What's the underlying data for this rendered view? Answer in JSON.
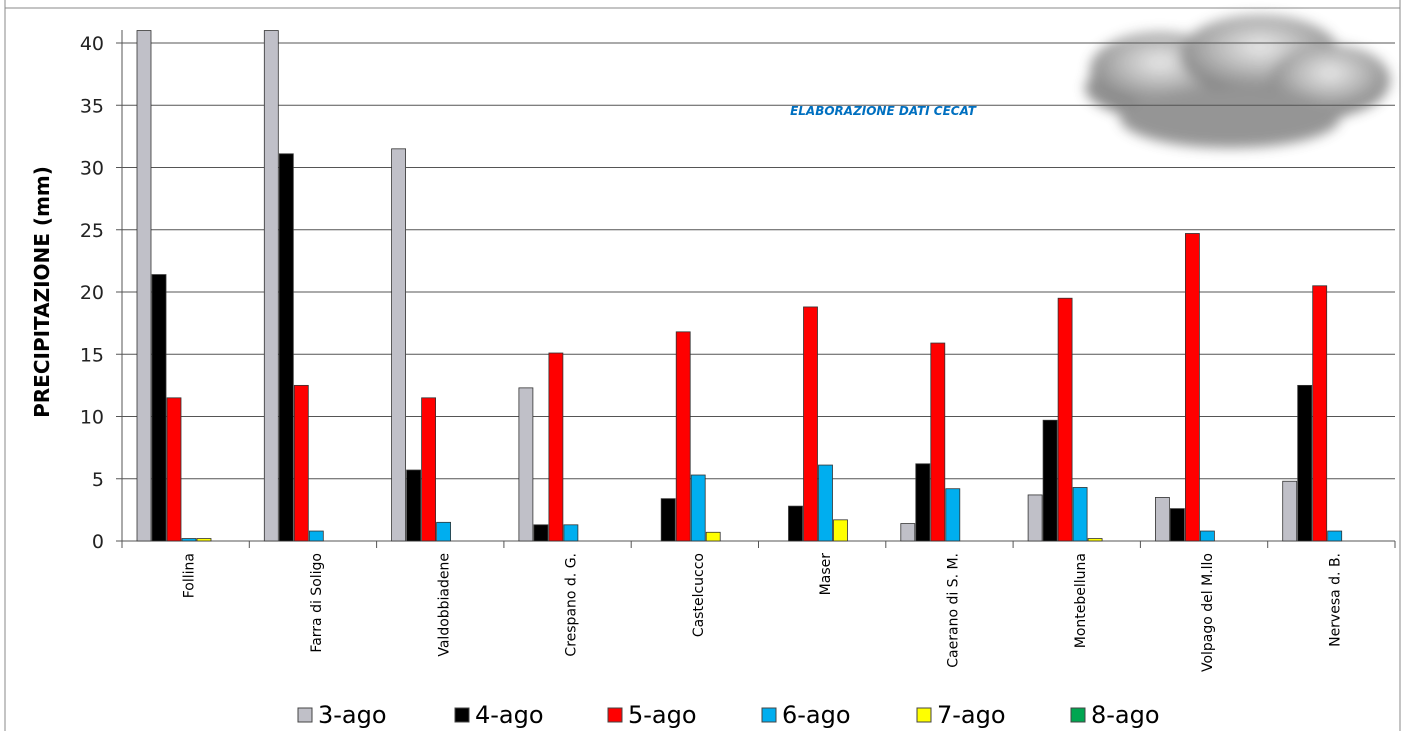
{
  "chart_data": {
    "type": "bar",
    "ylabel": "PRECIPITAZIONE (mm)",
    "xlabel": "",
    "ylim": [
      0,
      40
    ],
    "yticks": [
      0,
      5,
      10,
      15,
      20,
      25,
      30,
      35,
      40
    ],
    "grid": true,
    "legend_position": "bottom",
    "annotation": "ELABORAZIONE DATI CECAT",
    "categories": [
      "Follina",
      "Farra di Soligo",
      "Valdobbiadene",
      "Crespano d. G.",
      "Castelcucco",
      "Maser",
      "Caerano di S. M.",
      "Montebelluna",
      "Volpago del M.llo",
      "Nervesa d. B."
    ],
    "series": [
      {
        "name": "3-ago",
        "color": "#c0c0c8",
        "values": [
          41,
          41,
          31.5,
          12.3,
          0,
          0,
          1.4,
          3.7,
          3.5,
          4.8
        ]
      },
      {
        "name": "4-ago",
        "color": "#000000",
        "values": [
          21.4,
          31.1,
          5.7,
          1.3,
          3.4,
          2.8,
          6.2,
          9.7,
          2.6,
          12.5
        ]
      },
      {
        "name": "5-ago",
        "color": "#ff0000",
        "values": [
          11.5,
          12.5,
          11.5,
          15.1,
          16.8,
          18.8,
          15.9,
          19.5,
          24.7,
          20.5
        ]
      },
      {
        "name": "6-ago",
        "color": "#00aeef",
        "values": [
          0.2,
          0.8,
          1.5,
          1.3,
          5.3,
          6.1,
          4.2,
          4.3,
          0.8,
          0.8
        ]
      },
      {
        "name": "7-ago",
        "color": "#ffff00",
        "values": [
          0.2,
          0,
          0,
          0,
          0.7,
          1.7,
          0,
          0.2,
          0,
          0
        ]
      },
      {
        "name": "8-ago",
        "color": "#00a651",
        "values": [
          0,
          0,
          0,
          0,
          0,
          0,
          0,
          0,
          0,
          0
        ]
      }
    ]
  },
  "colors": {
    "annotation": "#0070c0",
    "grid": "#555555",
    "axis": "#555555"
  },
  "icons": {
    "decoration": "cloud-icon"
  }
}
